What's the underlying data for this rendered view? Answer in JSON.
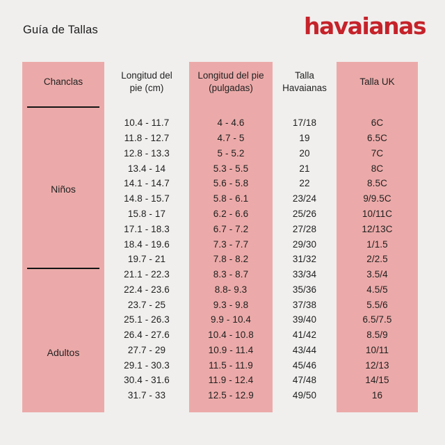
{
  "page": {
    "title": "Guía de Tallas",
    "logo_text": "havaianas",
    "colors": {
      "background": "#f0efee",
      "pink_column": "#ebaaa9",
      "logo_red": "#c5222a",
      "text": "#1e1e1e"
    }
  },
  "table": {
    "headers": {
      "product": "Chanclas",
      "foot_length_cm": "Longitud del pie (cm)",
      "foot_length_inches": "Longitud del pie (pulgadas)",
      "havaianas_size": "Talla Havaianas",
      "uk_size": "Talla UK"
    },
    "groups": [
      {
        "label": "Niños"
      },
      {
        "label": "Adultos"
      }
    ],
    "rows": [
      [
        "10.4 - 11.7",
        "4 - 4.6",
        "17/18",
        "6C"
      ],
      [
        "11.8 - 12.7",
        "4.7 - 5",
        "19",
        "6.5C"
      ],
      [
        "12.8 - 13.3",
        "5 - 5.2",
        "20",
        "7C"
      ],
      [
        "13.4 - 14",
        "5.3 - 5.5",
        "21",
        "8C"
      ],
      [
        "14.1 - 14.7",
        "5.6 - 5.8",
        "22",
        "8.5C"
      ],
      [
        "14.8 - 15.7",
        "5.8 - 6.1",
        "23/24",
        "9/9.5C"
      ],
      [
        "15.8 - 17",
        "6.2 - 6.6",
        "25/26",
        "10/11C"
      ],
      [
        "17.1 - 18.3",
        "6.7 - 7.2",
        "27/28",
        "12/13C"
      ],
      [
        "18.4 - 19.6",
        "7.3 - 7.7",
        "29/30",
        "1/1.5"
      ],
      [
        "19.7 - 21",
        "7.8 - 8.2",
        "31/32",
        "2/2.5"
      ],
      [
        "21.1 - 22.3",
        "8.3 - 8.7",
        "33/34",
        "3.5/4"
      ],
      [
        "22.4 - 23.6",
        "8.8- 9.3",
        "35/36",
        "4.5/5"
      ],
      [
        "23.7 - 25",
        "9.3 - 9.8",
        "37/38",
        "5.5/6"
      ],
      [
        "25.1 - 26.3",
        "9.9 - 10.4",
        "39/40",
        "6.5/7.5"
      ],
      [
        "26.4 - 27.6",
        "10.4 - 10.8",
        "41/42",
        "8.5/9"
      ],
      [
        "27.7 - 29",
        "10.9 - 11.4",
        "43/44",
        "10/11"
      ],
      [
        "29.1 - 30.3",
        "11.5 - 11.9",
        "45/46",
        "12/13"
      ],
      [
        "30.4 - 31.6",
        "11.9 - 12.4",
        "47/48",
        "14/15"
      ],
      [
        "31.7 - 33",
        "12.5 - 12.9",
        "49/50",
        "16"
      ]
    ]
  }
}
